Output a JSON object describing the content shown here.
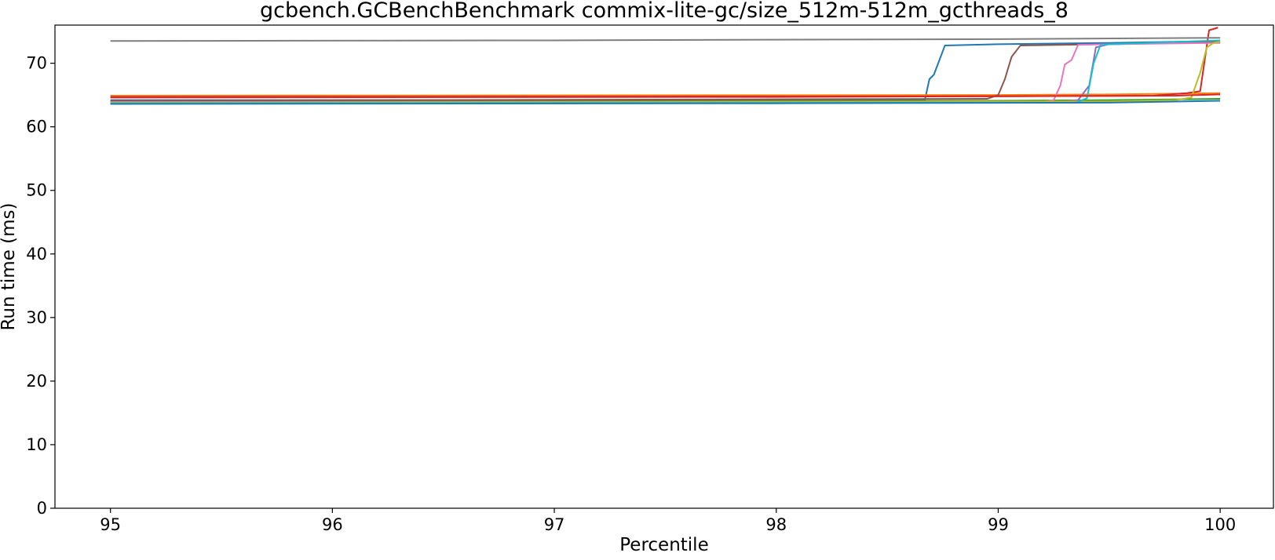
{
  "chart_data": {
    "type": "line",
    "title": "gcbench.GCBenchBenchmark commix-lite-gc/size_512m-512m_gcthreads_8",
    "xlabel": "Percentile",
    "ylabel": "Run time (ms)",
    "xlim": [
      94.75,
      100.24
    ],
    "ylim": [
      0,
      76
    ],
    "xticks": [
      95,
      96,
      97,
      98,
      99,
      100
    ],
    "yticks": [
      0,
      10,
      20,
      30,
      40,
      50,
      60,
      70
    ],
    "grid": false,
    "legend": "none",
    "series": [
      {
        "color": "#1f77b4",
        "points": [
          [
            95,
            64.2
          ],
          [
            98.6,
            64.2
          ],
          [
            98.67,
            64.3
          ],
          [
            98.69,
            67.5
          ],
          [
            98.71,
            68.2
          ],
          [
            98.76,
            72.8
          ],
          [
            99,
            73.0
          ],
          [
            99.5,
            73.2
          ],
          [
            100,
            73.5
          ]
        ]
      },
      {
        "color": "#ff7f0e",
        "points": [
          [
            95,
            64.9
          ],
          [
            99,
            65.0
          ],
          [
            99.5,
            65.1
          ],
          [
            100,
            65.3
          ]
        ]
      },
      {
        "color": "#2ca02c",
        "points": [
          [
            95,
            64.0
          ],
          [
            99,
            64.1
          ],
          [
            99.5,
            64.2
          ],
          [
            100,
            64.4
          ]
        ]
      },
      {
        "color": "#d62728",
        "points": [
          [
            95,
            64.7
          ],
          [
            99,
            64.8
          ],
          [
            99.7,
            64.9
          ],
          [
            99.85,
            65.3
          ],
          [
            99.91,
            65.6
          ],
          [
            99.95,
            75.2
          ],
          [
            99.99,
            75.6
          ]
        ]
      },
      {
        "color": "#9467bd",
        "points": [
          [
            95,
            63.9
          ],
          [
            99.3,
            64.0
          ],
          [
            99.36,
            64.2
          ],
          [
            99.41,
            66.5
          ],
          [
            99.44,
            72.5
          ],
          [
            99.5,
            73.0
          ],
          [
            100,
            73.3
          ]
        ]
      },
      {
        "color": "#8c564b",
        "points": [
          [
            95,
            64.1
          ],
          [
            98.95,
            64.4
          ],
          [
            99.0,
            65.0
          ],
          [
            99.03,
            67.5
          ],
          [
            99.06,
            71.0
          ],
          [
            99.1,
            72.8
          ],
          [
            99.5,
            73.0
          ],
          [
            100,
            73.4
          ]
        ]
      },
      {
        "color": "#e377c2",
        "points": [
          [
            95,
            63.9
          ],
          [
            99.2,
            63.9
          ],
          [
            99.25,
            64.2
          ],
          [
            99.28,
            66.5
          ],
          [
            99.3,
            69.8
          ],
          [
            99.33,
            70.5
          ],
          [
            99.36,
            72.9
          ],
          [
            99.5,
            73.0
          ],
          [
            100,
            73.2
          ]
        ]
      },
      {
        "color": "#7f7f7f",
        "points": [
          [
            95,
            73.5
          ],
          [
            97,
            73.6
          ],
          [
            99,
            73.8
          ],
          [
            100,
            74.0
          ]
        ]
      },
      {
        "color": "#bcbd22",
        "points": [
          [
            95,
            63.8
          ],
          [
            99.5,
            64.0
          ],
          [
            99.8,
            64.2
          ],
          [
            99.87,
            64.6
          ],
          [
            99.91,
            68.5
          ],
          [
            99.94,
            72.5
          ],
          [
            99.97,
            73.2
          ],
          [
            100,
            73.4
          ]
        ]
      },
      {
        "color": "#17becf",
        "points": [
          [
            95,
            63.7
          ],
          [
            99.35,
            63.8
          ],
          [
            99.4,
            64.5
          ],
          [
            99.43,
            70.0
          ],
          [
            99.46,
            72.8
          ],
          [
            99.5,
            73.0
          ],
          [
            100,
            73.6
          ]
        ]
      },
      {
        "color": "#d62728",
        "points": [
          [
            95,
            64.6
          ],
          [
            98,
            64.7
          ],
          [
            99,
            64.8
          ],
          [
            99.8,
            64.9
          ],
          [
            100,
            65.1
          ]
        ]
      },
      {
        "color": "#1f77b4",
        "points": [
          [
            95,
            63.6
          ],
          [
            98,
            63.7
          ],
          [
            99.5,
            63.8
          ],
          [
            100,
            64.1
          ]
        ]
      }
    ]
  }
}
